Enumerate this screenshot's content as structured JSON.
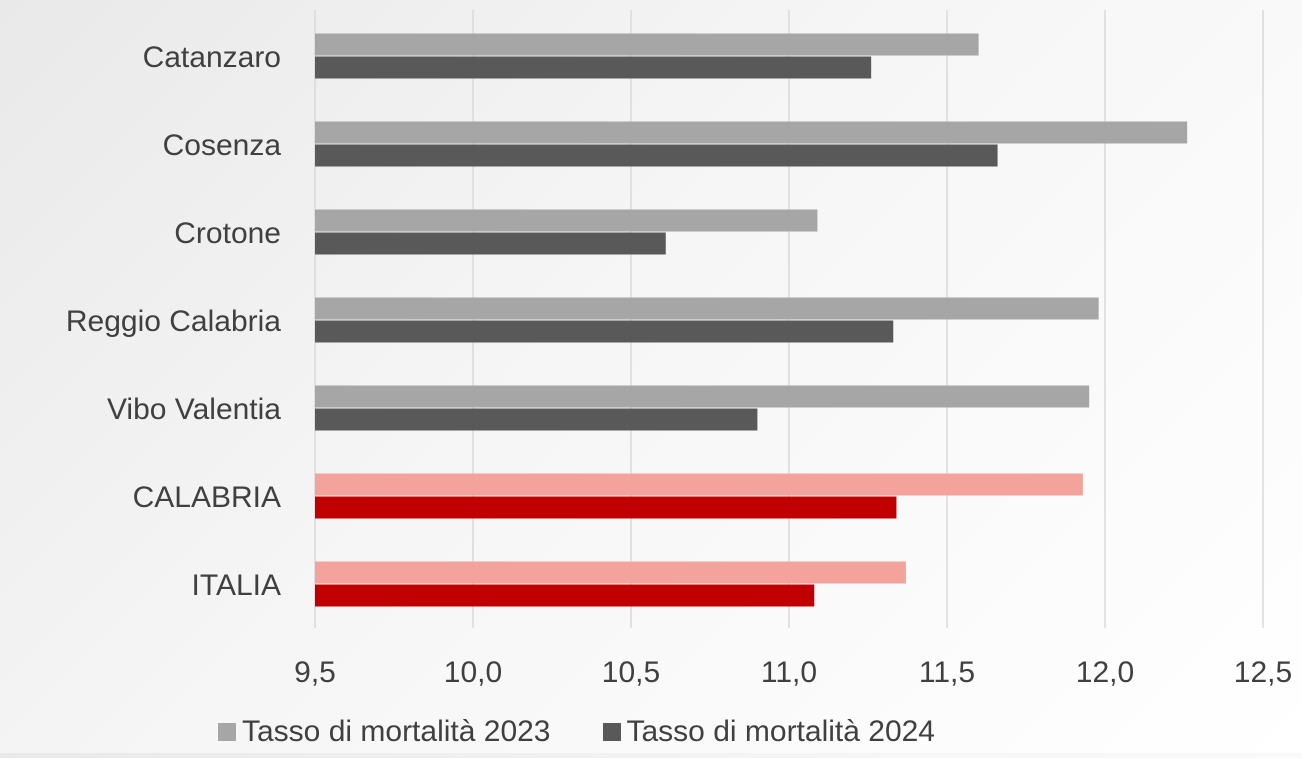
{
  "colors": {
    "series_2023": "#a6a6a6",
    "series_2024": "#595959",
    "highlight_2023": "#f4a29c",
    "highlight_2024": "#c00000",
    "grid": "#d9d9d9",
    "text": "#404040"
  },
  "chart_data": {
    "type": "bar",
    "orientation": "horizontal",
    "title": "",
    "xlabel": "",
    "ylabel": "",
    "categories": [
      "Catanzaro",
      "Cosenza",
      "Crotone",
      "Reggio Calabria",
      "Vibo Valentia",
      "CALABRIA",
      "ITALIA"
    ],
    "highlighted_categories": [
      "CALABRIA",
      "ITALIA"
    ],
    "series": [
      {
        "name": "Tasso di mortalità 2023",
        "values": [
          11.6,
          12.26,
          11.09,
          11.98,
          11.95,
          11.93,
          11.37
        ]
      },
      {
        "name": "Tasso di mortalità 2024",
        "values": [
          11.26,
          11.66,
          10.61,
          11.33,
          10.9,
          11.34,
          11.08
        ]
      }
    ],
    "xlim": [
      9.5,
      12.5
    ],
    "xticks": [
      "9,5",
      "10,0",
      "10,5",
      "11,0",
      "11,5",
      "12,0",
      "12,5"
    ],
    "xtick_values": [
      9.5,
      10.0,
      10.5,
      11.0,
      11.5,
      12.0,
      12.5
    ],
    "grid": true,
    "legend_position": "bottom"
  }
}
